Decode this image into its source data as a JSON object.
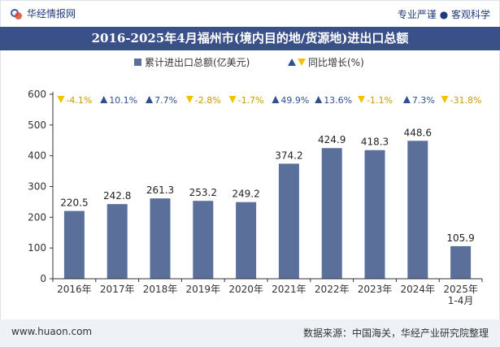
{
  "header": {
    "brand": "华经情报网",
    "tagline": "专业严谨 ● 客观科学"
  },
  "title": "2016-2025年4月福州市(境内目的地/货源地)进出口总额",
  "footer": {
    "left": "www.huaon.com",
    "right": "数据来源：中国海关，华经产业研究院整理"
  },
  "colors": {
    "bar": "#5b6f9b",
    "up": "#2f4f8f",
    "down": "#f2c200",
    "title_bg": "#3a5089"
  },
  "chart_data": {
    "type": "bar",
    "title": "2016-2025年4月福州市(境内目的地/货源地)进出口总额",
    "categories": [
      "2016年",
      "2017年",
      "2018年",
      "2019年",
      "2020年",
      "2021年",
      "2022年",
      "2023年",
      "2024年",
      "2025年\n1-4月"
    ],
    "series": [
      {
        "name": "累计进出口总额(亿美元)",
        "values": [
          220.5,
          242.8,
          261.3,
          253.2,
          249.2,
          374.2,
          424.9,
          418.3,
          448.6,
          105.9
        ],
        "value_labels": [
          "220.5",
          "242.8",
          "261.3",
          "253.2",
          "249.2",
          "374.2",
          "424.9",
          "418.3",
          "448.6",
          "105.9"
        ]
      },
      {
        "name": "同比增长(%)",
        "values": [
          -4.1,
          10.1,
          7.7,
          -2.8,
          -1.7,
          49.9,
          13.6,
          -1.1,
          7.3,
          -31.8
        ],
        "labels": [
          "-4.1%",
          "10.1%",
          "7.7%",
          "-2.8%",
          "-1.7%",
          "49.9%",
          "13.6%",
          "-1.1%",
          "7.3%",
          "-31.8%"
        ]
      }
    ],
    "ylim": [
      0,
      600
    ],
    "yticks": [
      "0",
      "100",
      "200",
      "300",
      "400",
      "500",
      "600"
    ],
    "legend_position": "top",
    "grid": false
  }
}
